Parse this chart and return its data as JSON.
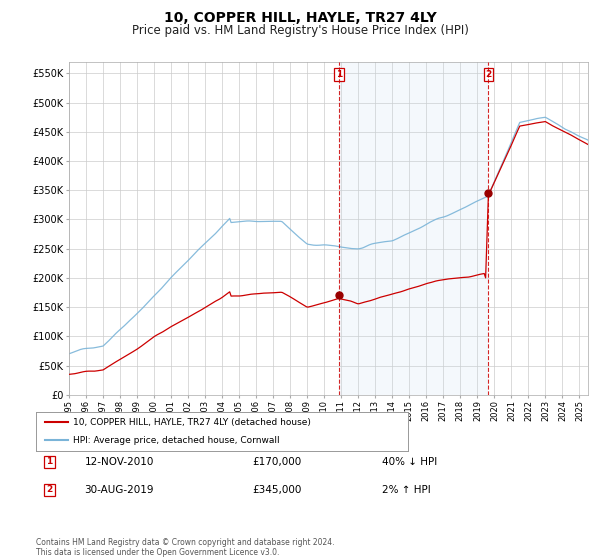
{
  "title": "10, COPPER HILL, HAYLE, TR27 4LY",
  "subtitle": "Price paid vs. HM Land Registry's House Price Index (HPI)",
  "title_fontsize": 10,
  "subtitle_fontsize": 8.5,
  "ylabel_ticks": [
    "£0",
    "£50K",
    "£100K",
    "£150K",
    "£200K",
    "£250K",
    "£300K",
    "£350K",
    "£400K",
    "£450K",
    "£500K",
    "£550K"
  ],
  "ylabel_values": [
    0,
    50000,
    100000,
    150000,
    200000,
    250000,
    300000,
    350000,
    400000,
    450000,
    500000,
    550000
  ],
  "ylim": [
    0,
    570000
  ],
  "hpi_color": "#7ab4d8",
  "hpi_fill_color": "#ddeeff",
  "price_color": "#cc0000",
  "marker_color": "#990000",
  "dashed_color": "#cc0000",
  "grid_color": "#cccccc",
  "bg_color": "#ffffff",
  "point1_year": 2010.87,
  "point2_year": 2019.66,
  "point1_price": 170000,
  "point2_price": 345000,
  "legend1": "10, COPPER HILL, HAYLE, TR27 4LY (detached house)",
  "legend2": "HPI: Average price, detached house, Cornwall",
  "annotation1_date": "12-NOV-2010",
  "annotation1_price": "£170,000",
  "annotation1_hpi": "40% ↓ HPI",
  "annotation2_date": "30-AUG-2019",
  "annotation2_price": "£345,000",
  "annotation2_hpi": "2% ↑ HPI",
  "footnote": "Contains HM Land Registry data © Crown copyright and database right 2024.\nThis data is licensed under the Open Government Licence v3.0.",
  "xstart": 1995.0,
  "xend": 2025.5
}
